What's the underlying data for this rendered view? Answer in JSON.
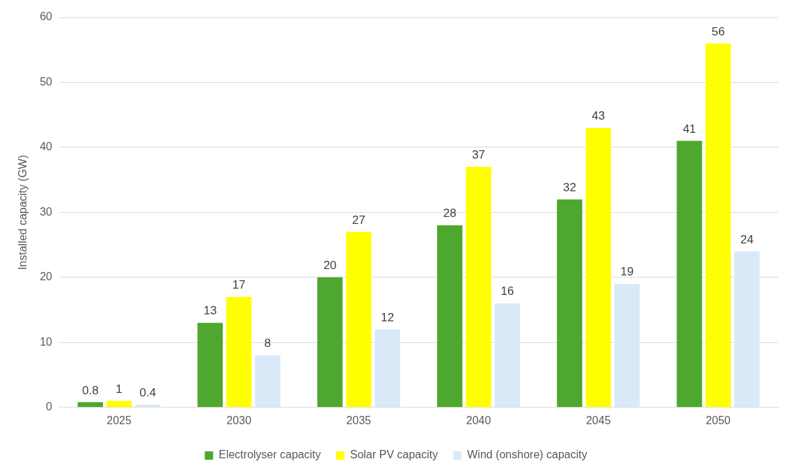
{
  "chart_data": {
    "type": "bar",
    "ylabel": "Installed capacity (GW)",
    "categories": [
      "2025",
      "2030",
      "2035",
      "2040",
      "2045",
      "2050"
    ],
    "series": [
      {
        "name": "Electrolyser capacity",
        "color": "#4ea72e",
        "values": [
          0.8,
          13,
          20,
          28,
          32,
          41
        ]
      },
      {
        "name": "Solar PV capacity",
        "color": "#ffff00",
        "values": [
          1,
          17,
          27,
          37,
          43,
          56
        ]
      },
      {
        "name": "Wind (onshore) capacity",
        "color": "#dae9f8",
        "values": [
          0.4,
          8,
          12,
          16,
          19,
          24
        ]
      }
    ],
    "ylim": [
      0,
      60
    ],
    "yticks": [
      0,
      10,
      20,
      30,
      40,
      50,
      60
    ],
    "grid": "y",
    "legend": "bottom",
    "data_labels": true
  }
}
